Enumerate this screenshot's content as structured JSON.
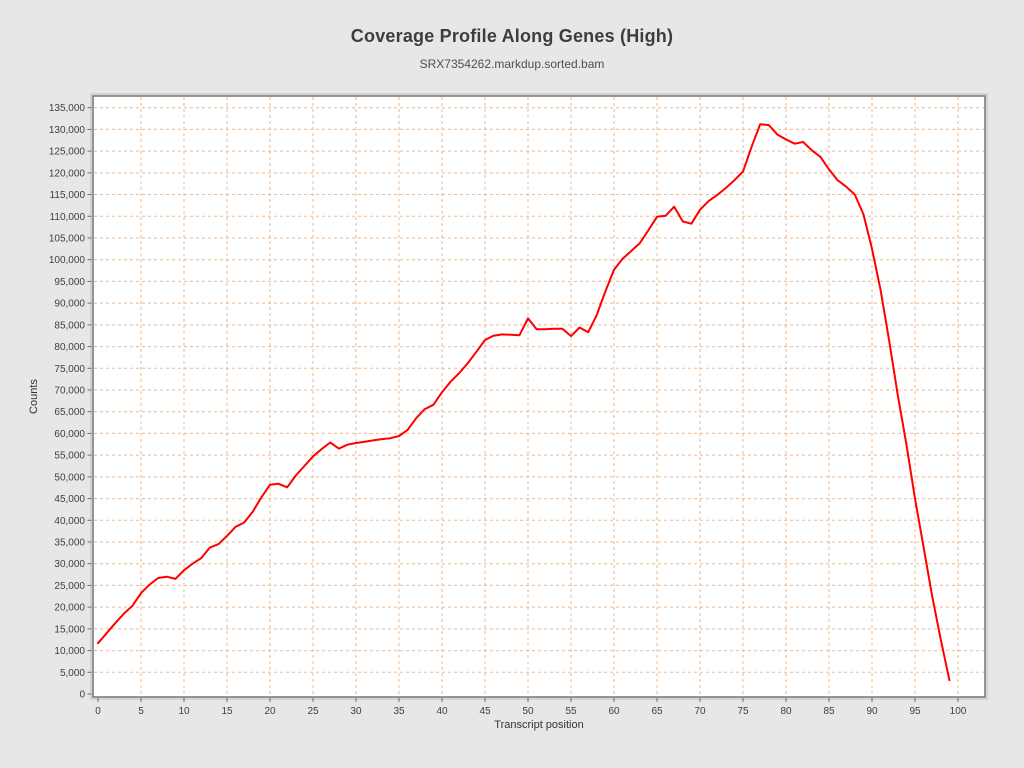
{
  "chart_data": {
    "type": "line",
    "title": "Coverage Profile Along Genes (High)",
    "subtitle": "SRX7354262.markdup.sorted.bam",
    "xlabel": "Transcript position",
    "ylabel": "Counts",
    "xlim": [
      0,
      100
    ],
    "ylim": [
      0,
      135000
    ],
    "x_ticks": [
      0,
      5,
      10,
      15,
      20,
      25,
      30,
      35,
      40,
      45,
      50,
      55,
      60,
      65,
      70,
      75,
      80,
      85,
      90,
      95,
      100
    ],
    "y_ticks": [
      0,
      5000,
      10000,
      15000,
      20000,
      25000,
      30000,
      35000,
      40000,
      45000,
      50000,
      55000,
      60000,
      65000,
      70000,
      75000,
      80000,
      85000,
      90000,
      95000,
      100000,
      105000,
      110000,
      115000,
      120000,
      125000,
      130000,
      135000
    ],
    "grid": "dashed",
    "legend_position": "none",
    "series": [
      {
        "name": "SRX7354262.markdup.sorted.bam",
        "x_start": 0,
        "x_step": 1,
        "n_points": 100,
        "values": [
          11700,
          14000,
          16300,
          18500,
          20300,
          23200,
          25200,
          26700,
          27000,
          26500,
          28500,
          30000,
          31300,
          33700,
          34500,
          36400,
          38500,
          39500,
          42000,
          45300,
          48200,
          48400,
          47600,
          50300,
          52500,
          54700,
          56400,
          57900,
          56500,
          57400,
          57800,
          58100,
          58400,
          58700,
          58900,
          59400,
          60800,
          63500,
          65600,
          66600,
          69500,
          71900,
          73900,
          76200,
          78800,
          81500,
          82500,
          82800,
          82700,
          82600,
          86500,
          84000,
          84000,
          84100,
          84100,
          82400,
          84400,
          83300,
          87300,
          92700,
          97700,
          100200,
          102000,
          103800,
          106800,
          109900,
          110100,
          112200,
          108800,
          108300,
          111500,
          113500,
          114900,
          116500,
          118300,
          120300,
          126000,
          131200,
          131000,
          128800,
          127700,
          126700,
          127100,
          125200,
          123700,
          120800,
          118300,
          116800,
          115000,
          110500,
          102500,
          93000,
          81300,
          68800,
          57500,
          45000,
          33800,
          22500,
          12500,
          3200
        ]
      }
    ],
    "colors": {
      "line": "#ff0000",
      "grid": "#edb88c",
      "plot_background": "#ffffff",
      "page_background": "#e7e7e7",
      "frame_dark": "#747474",
      "frame_light": "#cccccc",
      "tick_mark": "#6e6e6e",
      "tick_label": "#3f3f3f",
      "axis_label": "#333333"
    }
  }
}
